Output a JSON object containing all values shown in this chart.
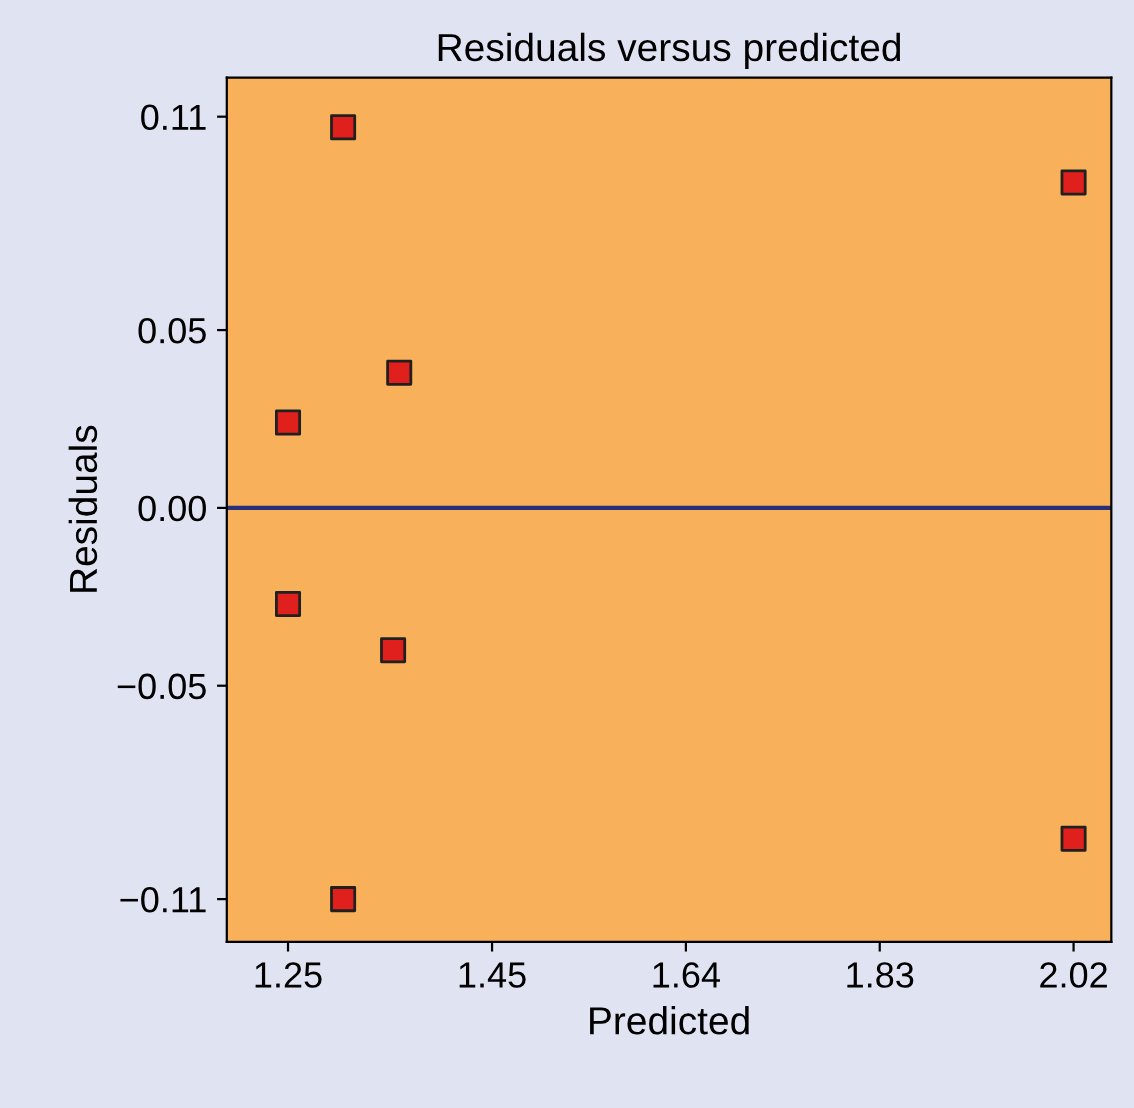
{
  "chart_data": {
    "type": "scatter",
    "title": "Residuals versus predicted",
    "xlabel": "Predicted",
    "ylabel": "Residuals",
    "x": [
      1.304,
      2.02,
      1.359,
      1.25,
      1.25,
      1.353,
      1.304,
      2.02
    ],
    "series": [
      {
        "color": "#e0201c",
        "values": [
          0.107,
          0.0915,
          0.038,
          0.024,
          -0.027,
          -0.04,
          -0.11,
          -0.093
        ]
      }
    ],
    "marker": "square",
    "xlim": [
      1.19,
      2.057
    ],
    "ylim": [
      -0.122,
      0.121
    ],
    "xticks": [
      1.25,
      1.45,
      1.64,
      1.83,
      2.02
    ],
    "yticks": [
      {
        "value": -0.11,
        "label": "−0.11"
      },
      {
        "value": -0.05,
        "label": "−0.05"
      },
      {
        "value": 0,
        "label": "0.00"
      },
      0.05,
      0.11
    ],
    "ref_lines": [
      {
        "axis": "y",
        "value": 0,
        "color": "#2a2f7a"
      }
    ],
    "grid": false
  }
}
